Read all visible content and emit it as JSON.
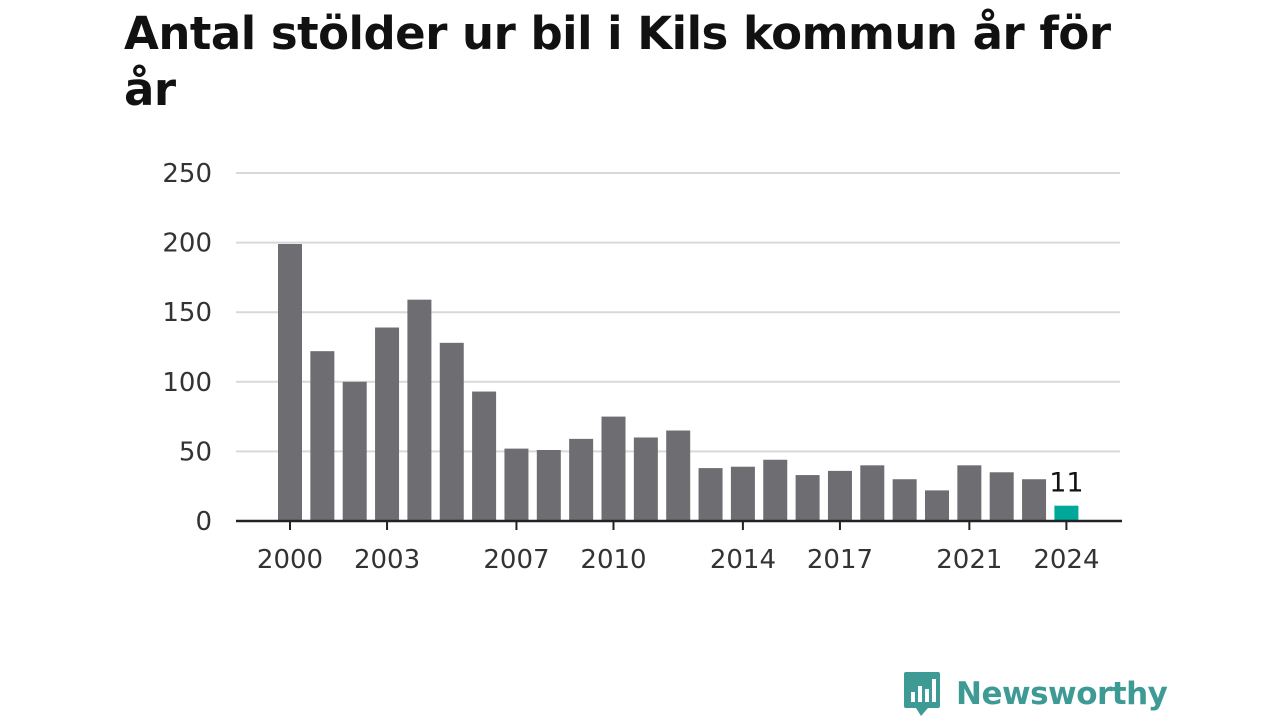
{
  "title": "Antal stölder ur bil i Kils kommun år för år",
  "brand": {
    "name": "Newsworthy",
    "icon": "newsworthy-logo-icon",
    "color": "#3d9a95"
  },
  "colors": {
    "bar": "#6e6d72",
    "highlight": "#00a89a",
    "grid": "#d9d9d9",
    "axis": "#222222",
    "text": "#333333"
  },
  "chart_data": {
    "type": "bar",
    "title": "Antal stölder ur bil i Kils kommun år för år",
    "xlabel": "",
    "ylabel": "",
    "categories": [
      "2000",
      "2001",
      "2002",
      "2003",
      "2004",
      "2005",
      "2006",
      "2007",
      "2008",
      "2009",
      "2010",
      "2011",
      "2012",
      "2013",
      "2014",
      "2015",
      "2016",
      "2017",
      "2018",
      "2019",
      "2020",
      "2021",
      "2022",
      "2023",
      "2024"
    ],
    "values": [
      199,
      122,
      100,
      139,
      159,
      128,
      93,
      52,
      51,
      59,
      75,
      60,
      65,
      38,
      39,
      44,
      33,
      36,
      40,
      30,
      22,
      40,
      35,
      30,
      11
    ],
    "ylim": [
      0,
      250
    ],
    "yticks": [
      0,
      50,
      100,
      150,
      200,
      250
    ],
    "xtick_labels": [
      "2000",
      "2003",
      "2007",
      "2010",
      "2014",
      "2017",
      "2021",
      "2024"
    ],
    "highlight": {
      "category": "2024",
      "label": "11"
    },
    "grid": true,
    "legend": "none"
  }
}
